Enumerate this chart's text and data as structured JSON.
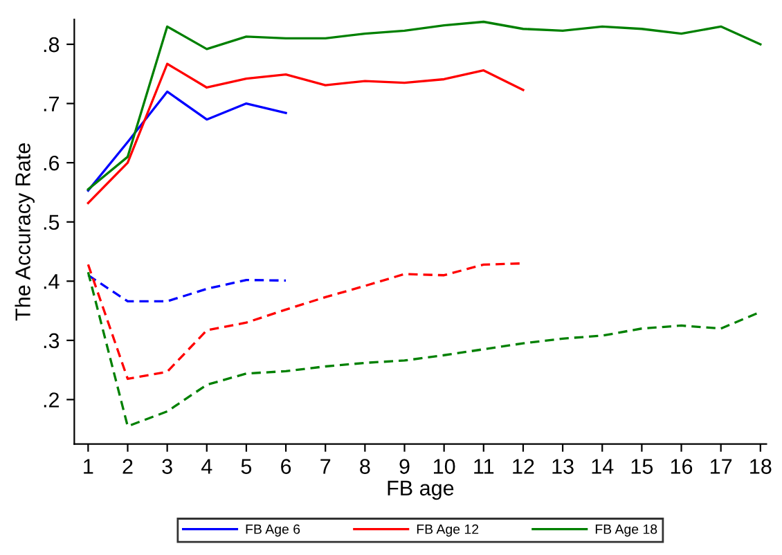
{
  "chart_data": {
    "type": "line",
    "xlabel": "FB age",
    "ylabel": "The Accuracy Rate",
    "x": [
      1,
      2,
      3,
      4,
      5,
      6,
      7,
      8,
      9,
      10,
      11,
      12,
      13,
      14,
      15,
      16,
      17,
      18
    ],
    "xlim": [
      0.65,
      18.15
    ],
    "xticks": [
      1,
      2,
      3,
      4,
      5,
      6,
      7,
      8,
      9,
      10,
      11,
      12,
      13,
      14,
      15,
      16,
      17,
      18
    ],
    "ylim": [
      0.125,
      0.842
    ],
    "yticks": [
      {
        "value": 0.2,
        "label": ".2"
      },
      {
        "value": 0.3,
        "label": ".3"
      },
      {
        "value": 0.4,
        "label": ".4"
      },
      {
        "value": 0.5,
        "label": ".5"
      },
      {
        "value": 0.6,
        "label": ".6"
      },
      {
        "value": 0.7,
        "label": ".7"
      },
      {
        "value": 0.8,
        "label": ".8"
      }
    ],
    "grid": false,
    "legend": "bottom",
    "marker": "none",
    "series": [
      {
        "name": "FB Age 6",
        "color": "#0000ff",
        "line_style": "solid",
        "values": [
          0.553,
          0.635,
          0.72,
          0.673,
          0.7,
          0.684,
          null,
          null,
          null,
          null,
          null,
          null,
          null,
          null,
          null,
          null,
          null,
          null
        ]
      },
      {
        "name": "FB Age 12",
        "color": "#ff0000",
        "line_style": "solid",
        "values": [
          0.532,
          0.6,
          0.767,
          0.727,
          0.742,
          0.749,
          0.731,
          0.738,
          0.735,
          0.741,
          0.756,
          0.723,
          null,
          null,
          null,
          null,
          null,
          null
        ]
      },
      {
        "name": "FB Age 18",
        "color": "#008000",
        "line_style": "solid",
        "values": [
          0.555,
          0.61,
          0.83,
          0.792,
          0.813,
          0.81,
          0.81,
          0.818,
          0.823,
          0.832,
          0.838,
          0.826,
          0.823,
          0.83,
          0.826,
          0.818,
          0.83,
          0.8
        ]
      },
      {
        "color": "#0000ff",
        "line_style": "dashed",
        "values": [
          0.41,
          0.366,
          0.366,
          0.387,
          0.402,
          0.401,
          null,
          null,
          null,
          null,
          null,
          null,
          null,
          null,
          null,
          null,
          null,
          null
        ]
      },
      {
        "color": "#ff0000",
        "line_style": "dashed",
        "values": [
          0.428,
          0.235,
          0.247,
          0.317,
          0.33,
          0.352,
          0.373,
          0.392,
          0.412,
          0.41,
          0.428,
          0.43,
          null,
          null,
          null,
          null,
          null,
          null
        ]
      },
      {
        "color": "#008000",
        "line_style": "dashed",
        "values": [
          0.415,
          0.155,
          0.18,
          0.225,
          0.244,
          0.248,
          0.256,
          0.262,
          0.266,
          0.275,
          0.285,
          0.295,
          0.303,
          0.308,
          0.32,
          0.325,
          0.32,
          0.348
        ]
      }
    ]
  }
}
